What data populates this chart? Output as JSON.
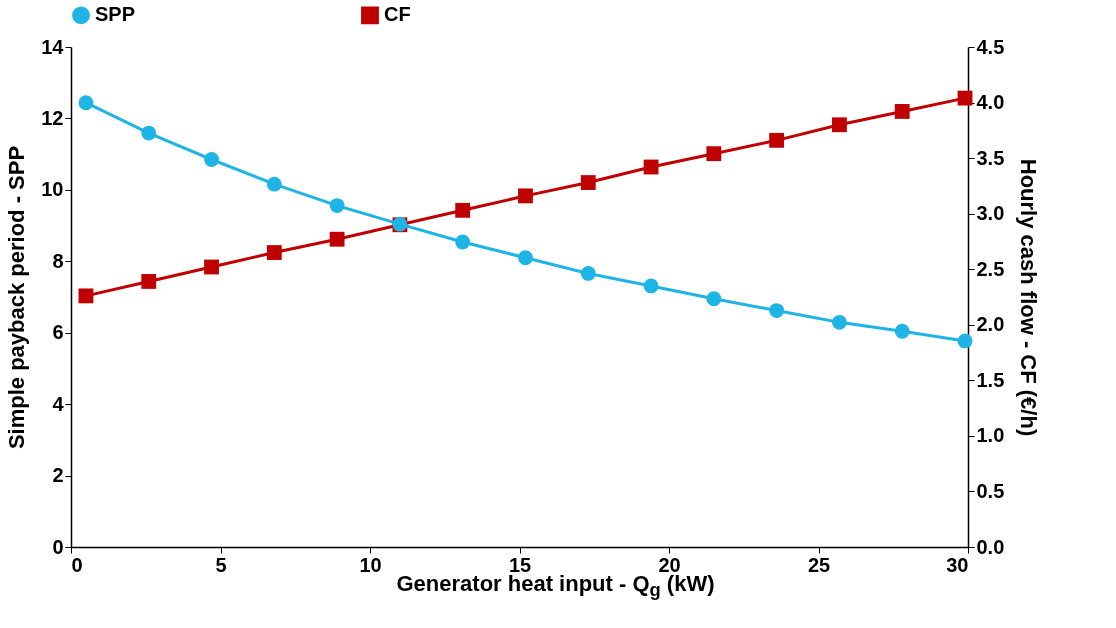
{
  "chart_data": {
    "type": "line",
    "xlabel": "Generator heat input - Q$_{g}$ (kW)",
    "ylabel": "Simple payback period - SPP",
    "y2label": "Hourly cash flow - CF (€/h)",
    "x": [
      0.5,
      2.6,
      4.7,
      6.8,
      8.9,
      11,
      13.1,
      15.2,
      17.3,
      19.4,
      21.5,
      23.6,
      25.7,
      27.8,
      29.9
    ],
    "series": [
      {
        "name": "SPP",
        "color": "#1fb4e6",
        "marker": "circle",
        "values": [
          12.44,
          11.59,
          10.85,
          10.16,
          9.56,
          9.04,
          8.54,
          8.1,
          7.66,
          7.31,
          6.95,
          6.62,
          6.29,
          6.04,
          5.77
        ]
      },
      {
        "name": "CF",
        "color": "#c00000",
        "marker": "square",
        "axis": "y2",
        "values": [
          2.26,
          2.39,
          2.52,
          2.65,
          2.77,
          2.9,
          3.03,
          3.16,
          3.28,
          3.42,
          3.54,
          3.66,
          3.8,
          3.92,
          4.04
        ]
      }
    ],
    "xlim": [
      0,
      30
    ],
    "xticks": [
      0,
      5,
      10,
      15,
      20,
      25,
      30
    ],
    "ylim": [
      0,
      14
    ],
    "yticks": [
      0,
      2,
      4,
      6,
      8,
      10,
      12,
      14
    ],
    "y2lim": [
      0,
      4.5
    ],
    "y2ticks": [
      {
        "value": 0,
        "label": "0.0"
      },
      0.5,
      {
        "value": 1,
        "label": "1.0"
      },
      1.5,
      {
        "value": 2,
        "label": "2.0"
      },
      2.5,
      {
        "value": 3,
        "label": "3.0"
      },
      3.5,
      {
        "value": 4,
        "label": "4.0"
      },
      4.5
    ],
    "grid": false,
    "legend": "top",
    "line_style": "solid"
  }
}
